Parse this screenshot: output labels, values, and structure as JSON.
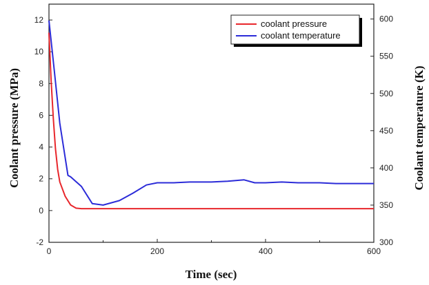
{
  "chart_data": {
    "type": "line",
    "xlabel": "Time (sec)",
    "ylabel_left": "Coolant pressure (MPa)",
    "ylabel_right": "Coolant temperature (K)",
    "xlim": [
      0,
      600
    ],
    "ylim_left": [
      -2,
      13
    ],
    "ylim_right": [
      300,
      620
    ],
    "xticks": [
      "0",
      "200",
      "400",
      "600"
    ],
    "yticks_left": [
      "-2",
      "0",
      "2",
      "4",
      "6",
      "8",
      "10",
      "12"
    ],
    "yticks_right": [
      "300",
      "350",
      "400",
      "450",
      "500",
      "550",
      "600"
    ],
    "grid": false,
    "legend_position": "top-right",
    "colors": {
      "pressure": "#e8262b",
      "temperature": "#2b2bd8"
    },
    "series": [
      {
        "name": "coolant pressure",
        "axis": "left",
        "x": [
          0,
          4,
          8,
          12,
          16,
          20,
          30,
          40,
          50,
          60,
          100,
          200,
          300,
          400,
          500,
          600
        ],
        "y": [
          11.2,
          8.2,
          5.8,
          3.9,
          2.6,
          1.8,
          0.9,
          0.35,
          0.15,
          0.12,
          0.12,
          0.12,
          0.12,
          0.12,
          0.12,
          0.12
        ]
      },
      {
        "name": "coolant temperature",
        "axis": "right",
        "x": [
          0,
          10,
          20,
          35,
          40,
          60,
          80,
          100,
          130,
          155,
          180,
          200,
          230,
          260,
          280,
          300,
          330,
          360,
          380,
          400,
          430,
          460,
          500,
          530,
          560,
          600
        ],
        "y": [
          598,
          530,
          460,
          390,
          388,
          375,
          352,
          350,
          356,
          366,
          377,
          380,
          380,
          381,
          381,
          381,
          382,
          384,
          380,
          380,
          381,
          380,
          380,
          379,
          379,
          379
        ]
      }
    ]
  }
}
